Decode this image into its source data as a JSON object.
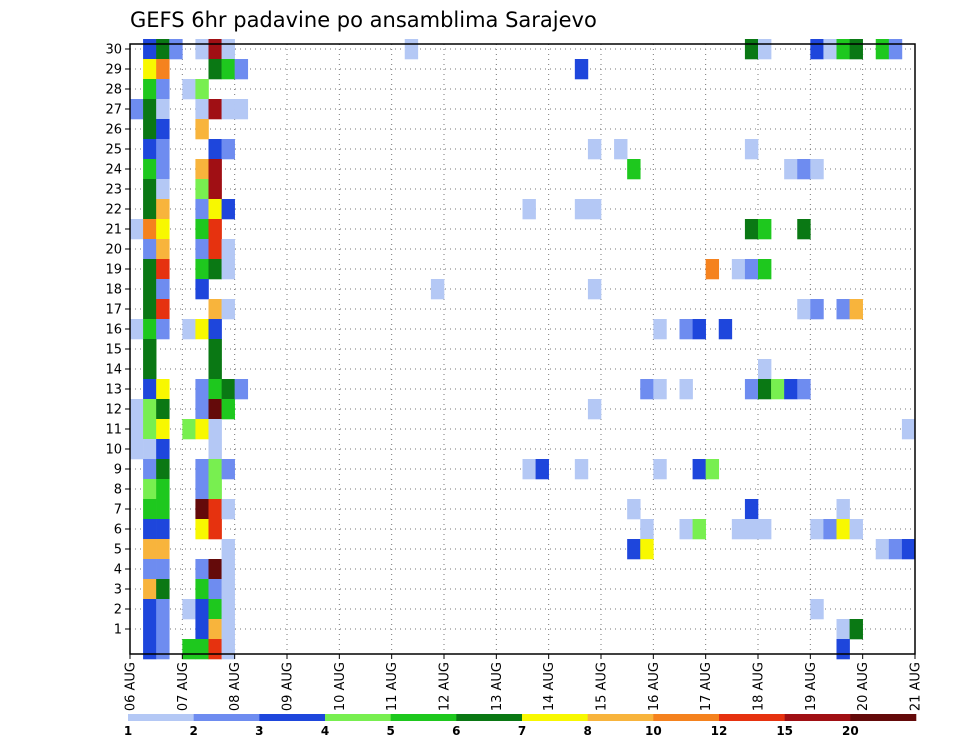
{
  "chart_data": {
    "type": "heatmap",
    "title": "GEFS 6hr padavine po ansamblima Sarajevo",
    "xlabel": "",
    "ylabel": "",
    "x_ticks": [
      "06 AUG",
      "07 AUG",
      "08 AUG",
      "09 AUG",
      "10 AUG",
      "11 AUG",
      "12 AUG",
      "13 AUG",
      "14 AUG",
      "15 AUG",
      "16 AUG",
      "17 AUG",
      "18 AUG",
      "19 AUG",
      "20 AUG",
      "21 AUG"
    ],
    "y_ticks": [
      "1",
      "2",
      "3",
      "4",
      "5",
      "6",
      "7",
      "8",
      "9",
      "10",
      "11",
      "12",
      "13",
      "14",
      "15",
      "16",
      "17",
      "18",
      "19",
      "20",
      "21",
      "22",
      "23",
      "24",
      "25",
      "26",
      "27",
      "28",
      "29",
      "30"
    ],
    "x_range_steps_6h": [
      0,
      60
    ],
    "y_range_members": [
      0,
      30
    ],
    "grid": "dotted",
    "colorbar": {
      "labels": [
        "1",
        "2",
        "3",
        "4",
        "5",
        "6",
        "7",
        "8",
        "10",
        "12",
        "15",
        "20"
      ],
      "colors": [
        "#b4c8f5",
        "#6e8cf0",
        "#1e46dc",
        "#78ef50",
        "#1ec81e",
        "#0a7814",
        "#f8f800",
        "#f8b43c",
        "#f5821e",
        "#e6320f",
        "#a00f14",
        "#640a0a"
      ]
    },
    "cells": [
      [
        30,
        1,
        3
      ],
      [
        30,
        2,
        6
      ],
      [
        30,
        3,
        2
      ],
      [
        30,
        5,
        1
      ],
      [
        30,
        6,
        11
      ],
      [
        30,
        7,
        1
      ],
      [
        30,
        21,
        1
      ],
      [
        30,
        47,
        6
      ],
      [
        30,
        48,
        1
      ],
      [
        30,
        52,
        3
      ],
      [
        30,
        53,
        1
      ],
      [
        30,
        54,
        5
      ],
      [
        30,
        55,
        6
      ],
      [
        30,
        57,
        5
      ],
      [
        30,
        58,
        2
      ],
      [
        29,
        1,
        7
      ],
      [
        29,
        2,
        9
      ],
      [
        29,
        6,
        6
      ],
      [
        29,
        7,
        5
      ],
      [
        29,
        8,
        2
      ],
      [
        29,
        34,
        3
      ],
      [
        28,
        1,
        5
      ],
      [
        28,
        2,
        2
      ],
      [
        28,
        4,
        1
      ],
      [
        28,
        5,
        4
      ],
      [
        27,
        0,
        2
      ],
      [
        27,
        1,
        6
      ],
      [
        27,
        2,
        1
      ],
      [
        27,
        5,
        1
      ],
      [
        27,
        6,
        11
      ],
      [
        27,
        7,
        1
      ],
      [
        27,
        8,
        1
      ],
      [
        26,
        1,
        6
      ],
      [
        26,
        2,
        3
      ],
      [
        26,
        5,
        8
      ],
      [
        25,
        1,
        3
      ],
      [
        25,
        2,
        2
      ],
      [
        25,
        6,
        3
      ],
      [
        25,
        7,
        2
      ],
      [
        25,
        35,
        1
      ],
      [
        25,
        37,
        1
      ],
      [
        25,
        47,
        1
      ],
      [
        24,
        1,
        5
      ],
      [
        24,
        2,
        2
      ],
      [
        24,
        5,
        8
      ],
      [
        24,
        6,
        11
      ],
      [
        24,
        38,
        5
      ],
      [
        24,
        50,
        1
      ],
      [
        24,
        51,
        2
      ],
      [
        24,
        52,
        1
      ],
      [
        23,
        1,
        6
      ],
      [
        23,
        2,
        1
      ],
      [
        23,
        5,
        4
      ],
      [
        23,
        6,
        11
      ],
      [
        22,
        1,
        6
      ],
      [
        22,
        2,
        8
      ],
      [
        22,
        5,
        2
      ],
      [
        22,
        6,
        7
      ],
      [
        22,
        7,
        3
      ],
      [
        22,
        30,
        1
      ],
      [
        22,
        34,
        1
      ],
      [
        22,
        35,
        1
      ],
      [
        21,
        0,
        1
      ],
      [
        21,
        1,
        9
      ],
      [
        21,
        2,
        7
      ],
      [
        21,
        5,
        5
      ],
      [
        21,
        6,
        10
      ],
      [
        21,
        47,
        6
      ],
      [
        21,
        48,
        5
      ],
      [
        21,
        51,
        6
      ],
      [
        20,
        1,
        2
      ],
      [
        20,
        2,
        8
      ],
      [
        20,
        5,
        2
      ],
      [
        20,
        6,
        10
      ],
      [
        20,
        7,
        1
      ],
      [
        19,
        1,
        6
      ],
      [
        19,
        2,
        10
      ],
      [
        19,
        5,
        5
      ],
      [
        19,
        6,
        6
      ],
      [
        19,
        7,
        1
      ],
      [
        19,
        44,
        9
      ],
      [
        19,
        46,
        1
      ],
      [
        19,
        47,
        2
      ],
      [
        19,
        48,
        5
      ],
      [
        18,
        1,
        6
      ],
      [
        18,
        2,
        2
      ],
      [
        18,
        5,
        3
      ],
      [
        18,
        23,
        1
      ],
      [
        18,
        35,
        1
      ],
      [
        17,
        1,
        6
      ],
      [
        17,
        2,
        10
      ],
      [
        17,
        6,
        8
      ],
      [
        17,
        7,
        1
      ],
      [
        17,
        51,
        1
      ],
      [
        17,
        52,
        2
      ],
      [
        17,
        54,
        2
      ],
      [
        17,
        55,
        8
      ],
      [
        16,
        0,
        1
      ],
      [
        16,
        1,
        5
      ],
      [
        16,
        2,
        2
      ],
      [
        16,
        4,
        1
      ],
      [
        16,
        5,
        7
      ],
      [
        16,
        6,
        3
      ],
      [
        16,
        40,
        1
      ],
      [
        16,
        42,
        2
      ],
      [
        16,
        43,
        3
      ],
      [
        16,
        45,
        3
      ],
      [
        15,
        1,
        6
      ],
      [
        15,
        6,
        6
      ],
      [
        14,
        1,
        6
      ],
      [
        14,
        6,
        6
      ],
      [
        14,
        48,
        1
      ],
      [
        13,
        1,
        3
      ],
      [
        13,
        2,
        7
      ],
      [
        13,
        5,
        2
      ],
      [
        13,
        6,
        5
      ],
      [
        13,
        7,
        6
      ],
      [
        13,
        8,
        2
      ],
      [
        13,
        39,
        2
      ],
      [
        13,
        40,
        1
      ],
      [
        13,
        42,
        1
      ],
      [
        13,
        47,
        2
      ],
      [
        13,
        48,
        6
      ],
      [
        13,
        49,
        4
      ],
      [
        13,
        50,
        3
      ],
      [
        13,
        51,
        2
      ],
      [
        12,
        0,
        1
      ],
      [
        12,
        1,
        4
      ],
      [
        12,
        2,
        6
      ],
      [
        12,
        5,
        2
      ],
      [
        12,
        6,
        12
      ],
      [
        12,
        7,
        5
      ],
      [
        12,
        35,
        1
      ],
      [
        11,
        0,
        1
      ],
      [
        11,
        1,
        4
      ],
      [
        11,
        2,
        7
      ],
      [
        11,
        4,
        4
      ],
      [
        11,
        5,
        7
      ],
      [
        11,
        6,
        1
      ],
      [
        11,
        59,
        1
      ],
      [
        10,
        0,
        1
      ],
      [
        10,
        1,
        1
      ],
      [
        10,
        2,
        3
      ],
      [
        10,
        6,
        1
      ],
      [
        9,
        1,
        2
      ],
      [
        9,
        2,
        6
      ],
      [
        9,
        5,
        2
      ],
      [
        9,
        6,
        4
      ],
      [
        9,
        7,
        2
      ],
      [
        9,
        30,
        1
      ],
      [
        9,
        31,
        3
      ],
      [
        9,
        34,
        1
      ],
      [
        9,
        40,
        1
      ],
      [
        9,
        43,
        3
      ],
      [
        9,
        44,
        4
      ],
      [
        8,
        1,
        4
      ],
      [
        8,
        2,
        5
      ],
      [
        8,
        5,
        2
      ],
      [
        8,
        6,
        4
      ],
      [
        7,
        1,
        5
      ],
      [
        7,
        2,
        5
      ],
      [
        7,
        5,
        12
      ],
      [
        7,
        6,
        10
      ],
      [
        7,
        7,
        1
      ],
      [
        7,
        38,
        1
      ],
      [
        7,
        47,
        3
      ],
      [
        7,
        54,
        1
      ],
      [
        6,
        1,
        3
      ],
      [
        6,
        2,
        3
      ],
      [
        6,
        5,
        7
      ],
      [
        6,
        6,
        10
      ],
      [
        6,
        39,
        1
      ],
      [
        6,
        42,
        1
      ],
      [
        6,
        43,
        4
      ],
      [
        6,
        46,
        1
      ],
      [
        6,
        47,
        1
      ],
      [
        6,
        48,
        1
      ],
      [
        6,
        52,
        1
      ],
      [
        6,
        53,
        2
      ],
      [
        6,
        54,
        7
      ],
      [
        6,
        55,
        1
      ],
      [
        5,
        1,
        8
      ],
      [
        5,
        2,
        8
      ],
      [
        5,
        7,
        1
      ],
      [
        5,
        38,
        3
      ],
      [
        5,
        39,
        7
      ],
      [
        5,
        57,
        1
      ],
      [
        5,
        58,
        2
      ],
      [
        5,
        59,
        3
      ],
      [
        4,
        1,
        2
      ],
      [
        4,
        2,
        2
      ],
      [
        4,
        5,
        2
      ],
      [
        4,
        6,
        12
      ],
      [
        4,
        7,
        1
      ],
      [
        3,
        1,
        8
      ],
      [
        3,
        2,
        6
      ],
      [
        3,
        5,
        5
      ],
      [
        3,
        6,
        2
      ],
      [
        3,
        7,
        1
      ],
      [
        2,
        1,
        3
      ],
      [
        2,
        2,
        2
      ],
      [
        2,
        4,
        1
      ],
      [
        2,
        5,
        3
      ],
      [
        2,
        6,
        5
      ],
      [
        2,
        7,
        1
      ],
      [
        2,
        52,
        1
      ],
      [
        1,
        1,
        3
      ],
      [
        1,
        2,
        2
      ],
      [
        1,
        5,
        3
      ],
      [
        1,
        6,
        8
      ],
      [
        1,
        7,
        1
      ],
      [
        1,
        54,
        1
      ],
      [
        1,
        55,
        6
      ],
      [
        0,
        1,
        3
      ],
      [
        0,
        2,
        2
      ],
      [
        0,
        4,
        5
      ],
      [
        0,
        5,
        5
      ],
      [
        0,
        6,
        10
      ],
      [
        0,
        7,
        1
      ],
      [
        0,
        54,
        3
      ]
    ]
  }
}
